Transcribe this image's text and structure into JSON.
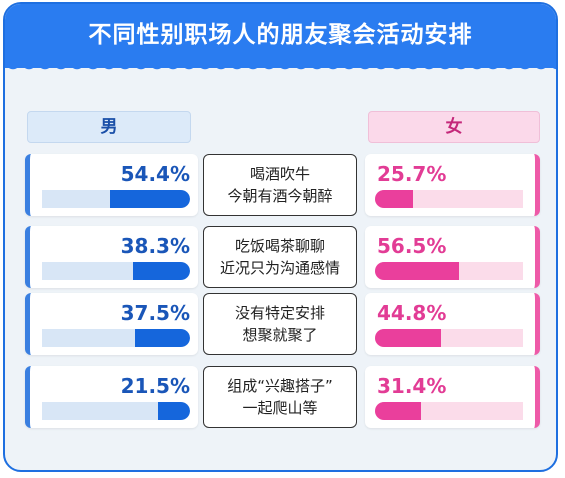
{
  "chart_data": {
    "type": "bar",
    "title": "不同性别职场人的朋友聚会活动安排",
    "series": [
      {
        "name": "男",
        "values": [
          54.4,
          38.3,
          37.5,
          21.5
        ],
        "labels": [
          "54.4%",
          "38.3%",
          "37.5%",
          "21.5%"
        ]
      },
      {
        "name": "女",
        "values": [
          25.7,
          56.5,
          44.8,
          31.4
        ],
        "labels": [
          "25.7%",
          "56.5%",
          "44.8%",
          "31.4%"
        ]
      }
    ],
    "categories": [
      {
        "line1": "喝酒吹牛",
        "line2": "今朝有酒今朝醉"
      },
      {
        "line1": "吃饭喝茶聊聊",
        "line2": "近况只为沟通感情"
      },
      {
        "line1": "没有特定安排",
        "line2": "想聚就聚了"
      },
      {
        "line1": "组成“兴趣搭子”",
        "line2": "一起爬山等"
      }
    ],
    "ylim": [
      0,
      100
    ]
  },
  "colors": {
    "header": "#2a7cf0",
    "male_fill": "#1566dc",
    "female_fill": "#ea3f9c"
  }
}
